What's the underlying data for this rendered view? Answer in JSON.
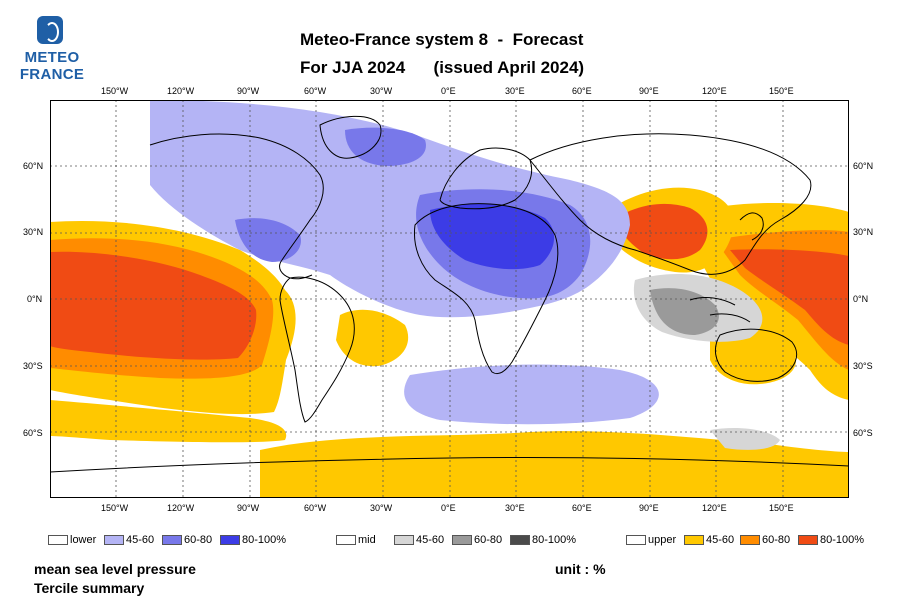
{
  "logo": {
    "line1": "METEO",
    "line2": "FRANCE"
  },
  "title": {
    "line1": "Meteo-France system 8  -  Forecast",
    "line2": "For JJA 2024      (issued April 2024)"
  },
  "map": {
    "lon_labels": [
      "150°W",
      "120°W",
      "90°W",
      "60°W",
      "30°W",
      "0°E",
      "30°E",
      "60°E",
      "90°E",
      "120°E",
      "150°E"
    ],
    "lat_labels_left": [
      "60°N",
      "30°N",
      "0°N",
      "30°S",
      "60°S"
    ],
    "lat_labels_right": [
      "60°N",
      "30°N",
      "0°N",
      "30°S",
      "60°S"
    ],
    "colors": {
      "lower_45_60": "#b4b4f5",
      "lower_60_80": "#7878ea",
      "lower_80_100": "#3c3ce6",
      "mid_45_60": "#d6d6d6",
      "mid_60_80": "#9a9a9a",
      "mid_80_100": "#4a4a4a",
      "upper_45_60": "#ffc800",
      "upper_60_80": "#ff8c00",
      "upper_80_100": "#f04b14"
    }
  },
  "legend": {
    "lower": {
      "name": "lower",
      "items": [
        "45-60",
        "60-80",
        "80-100%"
      ]
    },
    "mid": {
      "name": "mid",
      "items": [
        "45-60",
        "60-80",
        "80-100%"
      ]
    },
    "upper": {
      "name": "upper",
      "items": [
        "45-60",
        "60-80",
        "80-100%"
      ]
    }
  },
  "captions": {
    "variable": "mean sea level pressure",
    "summary": "Tercile summary",
    "unit": "unit : %"
  }
}
